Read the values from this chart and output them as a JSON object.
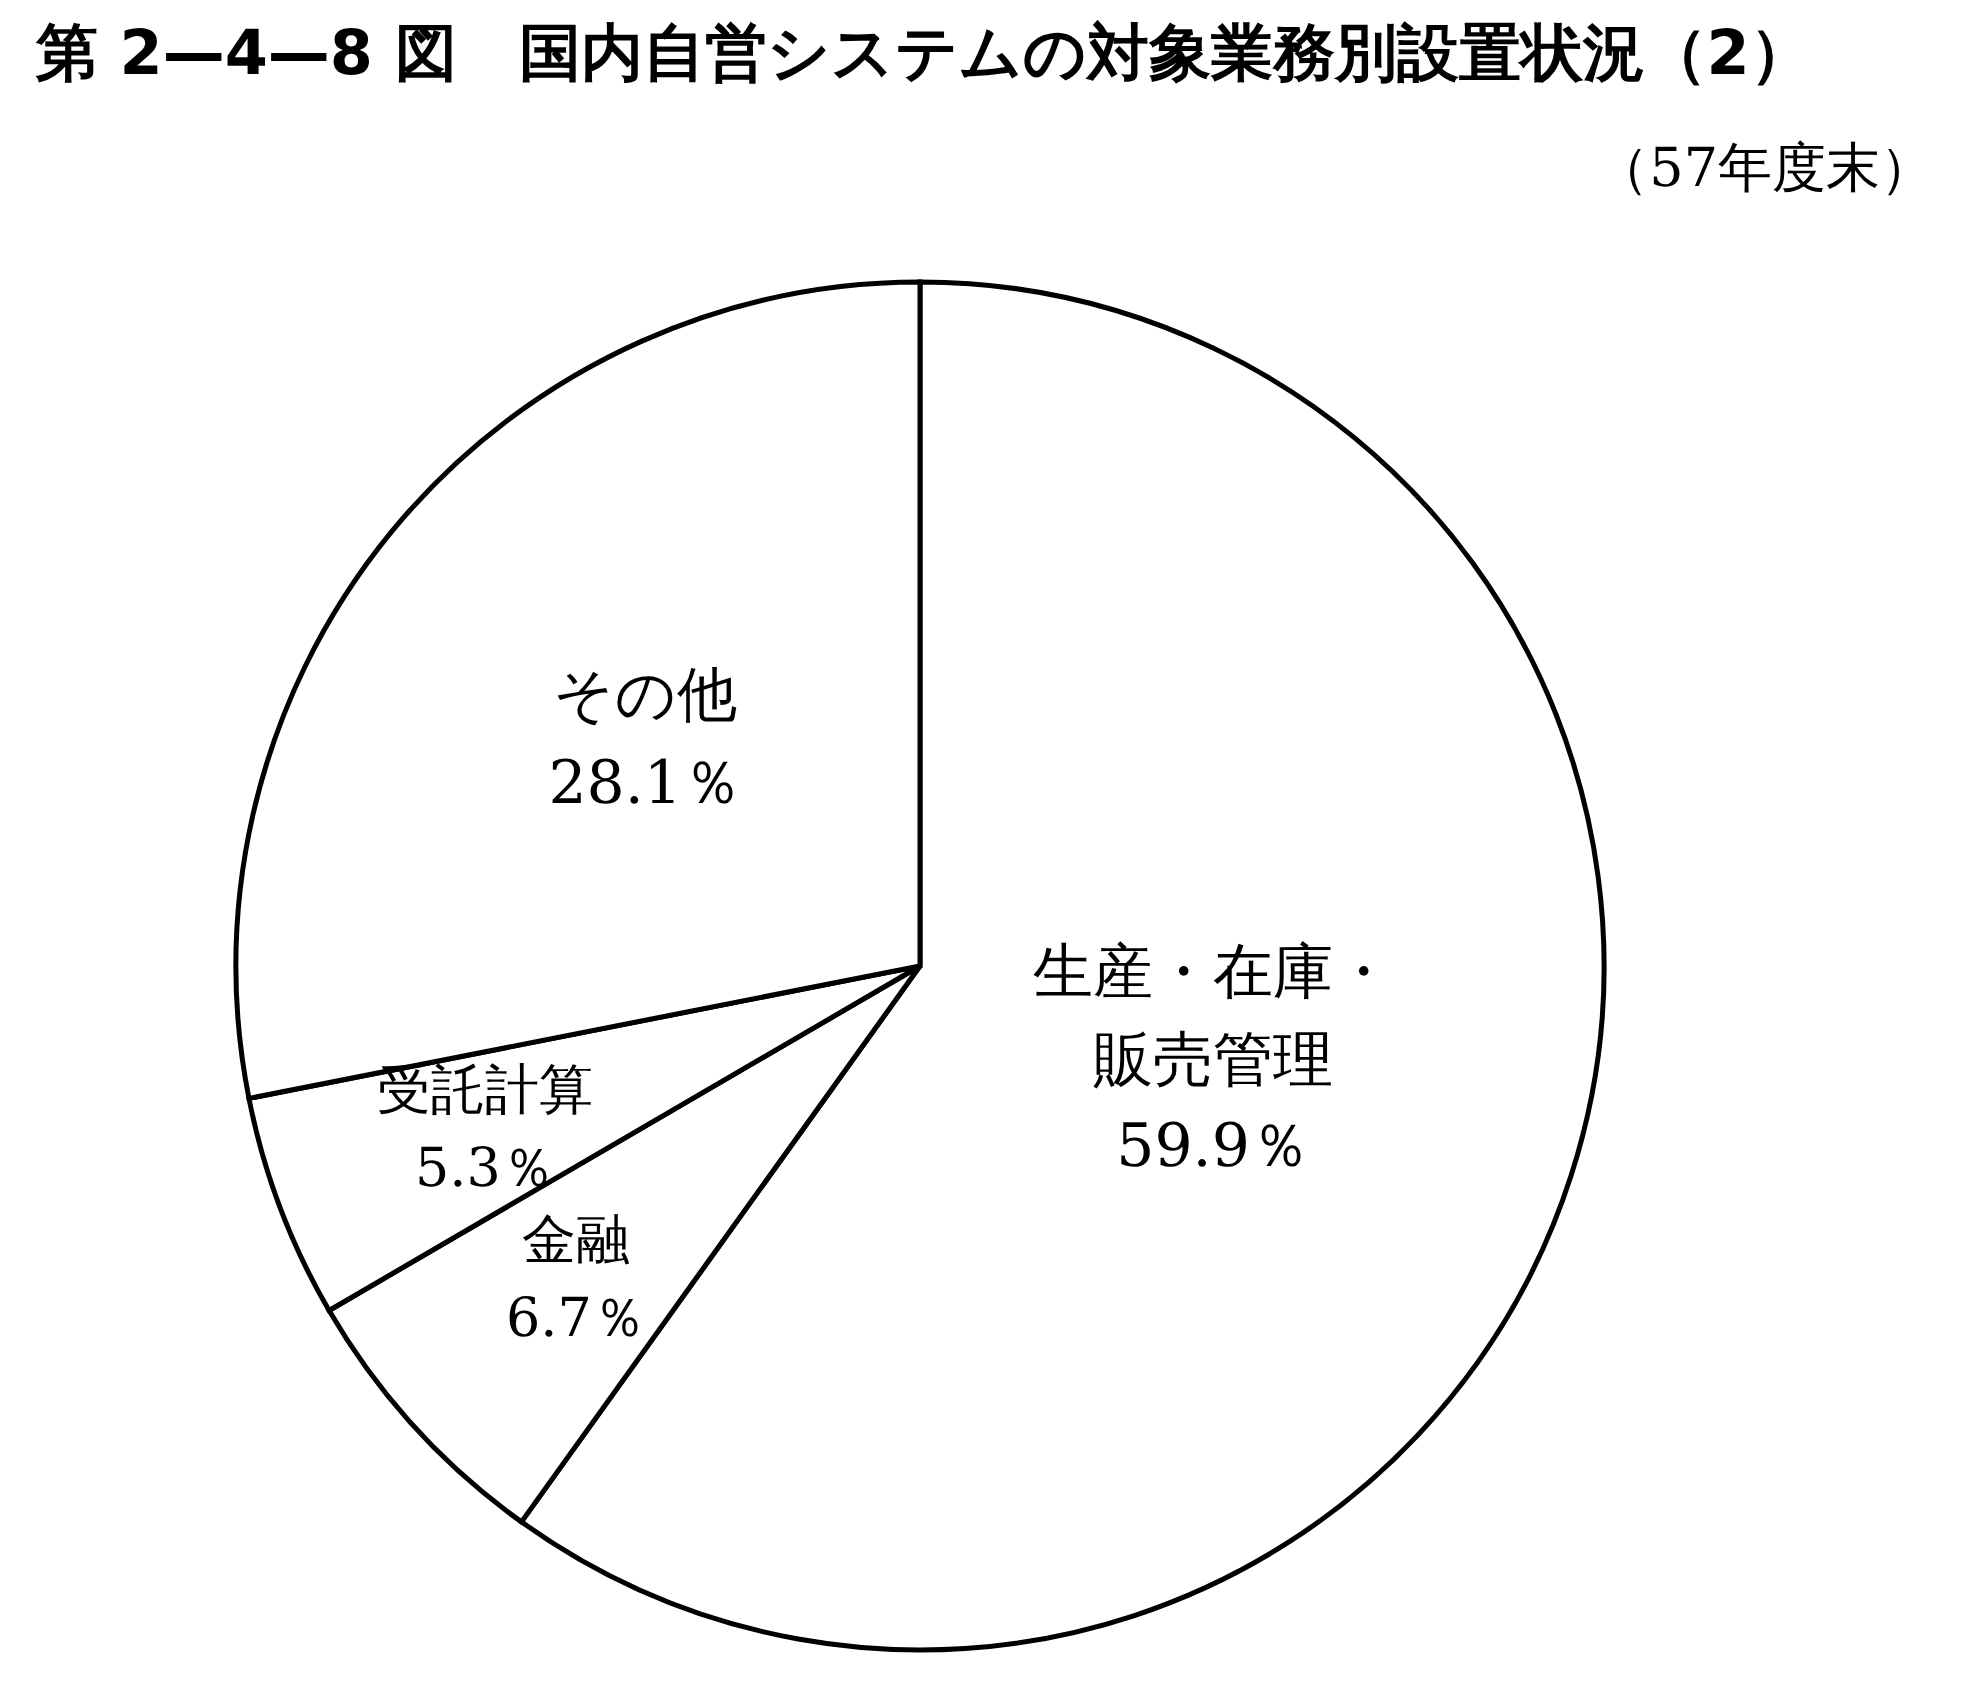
{
  "chart_data": {
    "type": "pie",
    "title": "第 2—4—8 図　国内自営システムの対象業務別設置状況（2）",
    "subtitle": "（57年度末）",
    "categories": [
      "生産・在庫・販売管理",
      "金融",
      "受託計算",
      "その他"
    ],
    "values": [
      59.9,
      6.7,
      5.3,
      28.1
    ],
    "value_labels": [
      "59.9％",
      "6.7％",
      "5.3％",
      "28.1％"
    ],
    "colors": [
      "#ffffff",
      "#ffffff",
      "#ffffff",
      "#ffffff"
    ]
  }
}
